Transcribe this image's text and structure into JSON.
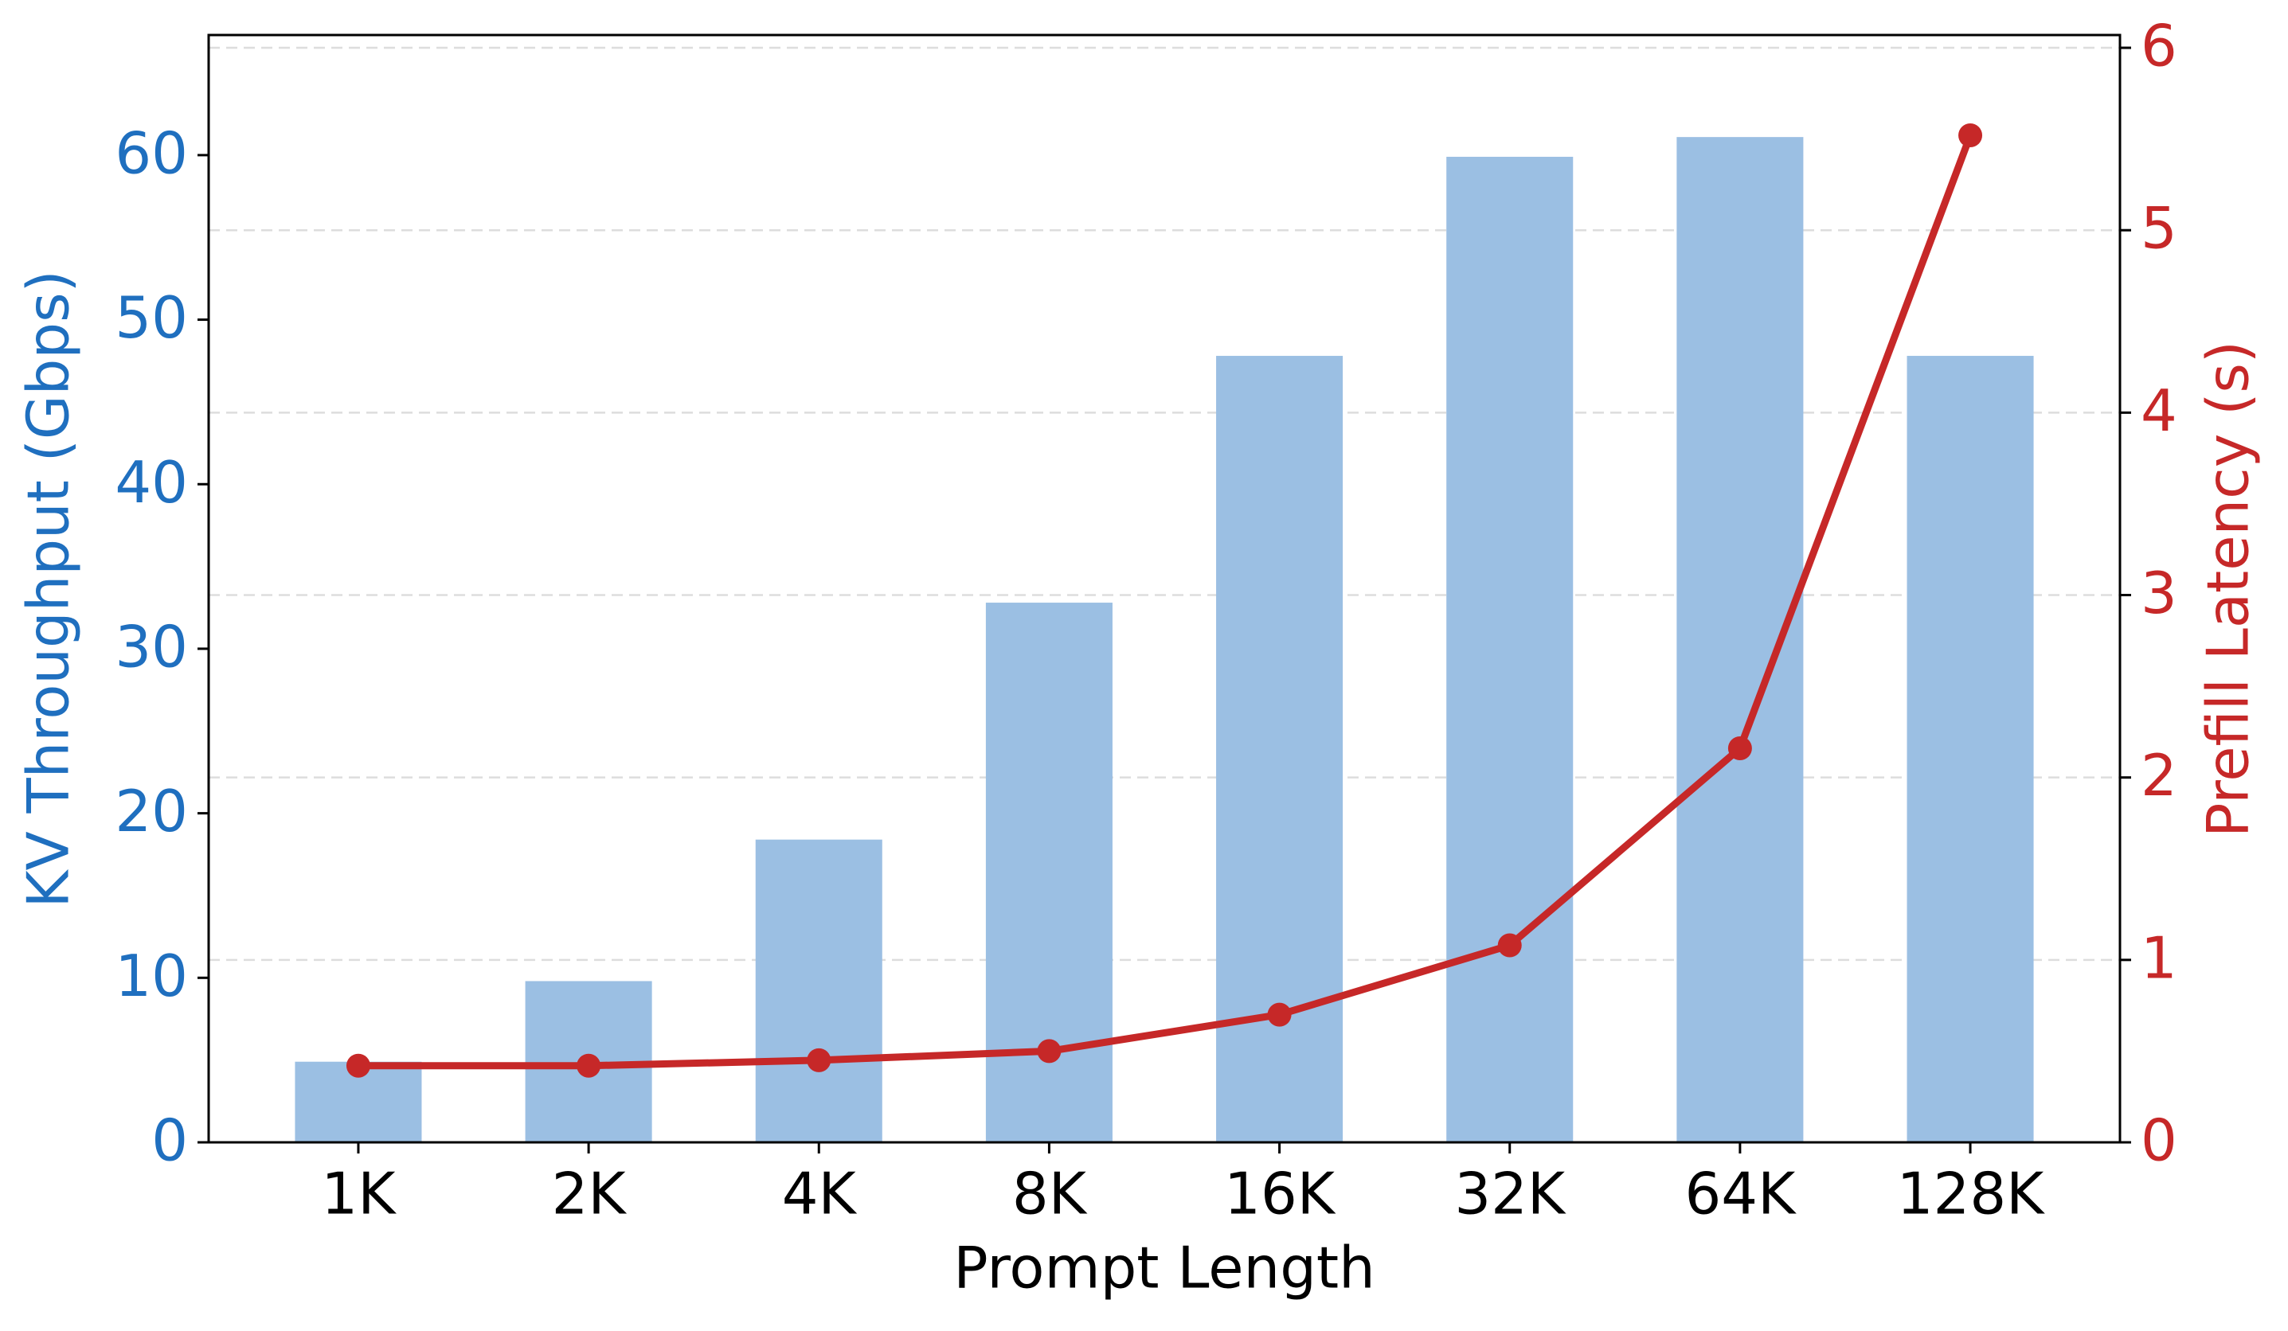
{
  "chart_data": {
    "type": "bar",
    "xlabel": "Prompt Length",
    "ylabel": "KV Throughput (Gbps)",
    "y2label": "Prefill Latency (s)",
    "categories": [
      "1K",
      "2K",
      "4K",
      "8K",
      "16K",
      "32K",
      "64K",
      "128K"
    ],
    "series": [
      {
        "type": "bar",
        "axis": "y",
        "color": "#9bbfe3",
        "values": [
          4.9,
          9.8,
          18.4,
          32.8,
          47.8,
          59.9,
          61.1,
          47.8
        ]
      },
      {
        "type": "line",
        "axis": "y2",
        "color": "#c62828",
        "values": [
          0.42,
          0.42,
          0.45,
          0.5,
          0.7,
          1.08,
          2.16,
          5.52
        ]
      }
    ],
    "ylim": [
      0,
      67.3
    ],
    "yticks": [
      0,
      10,
      20,
      30,
      40,
      50,
      60
    ],
    "y2lim": [
      0,
      6.07
    ],
    "y2ticks": [
      0,
      1,
      2,
      3,
      4,
      5,
      6
    ],
    "ycolor": "#1f6fbf",
    "y2color": "#c62828",
    "grid": "y2"
  }
}
